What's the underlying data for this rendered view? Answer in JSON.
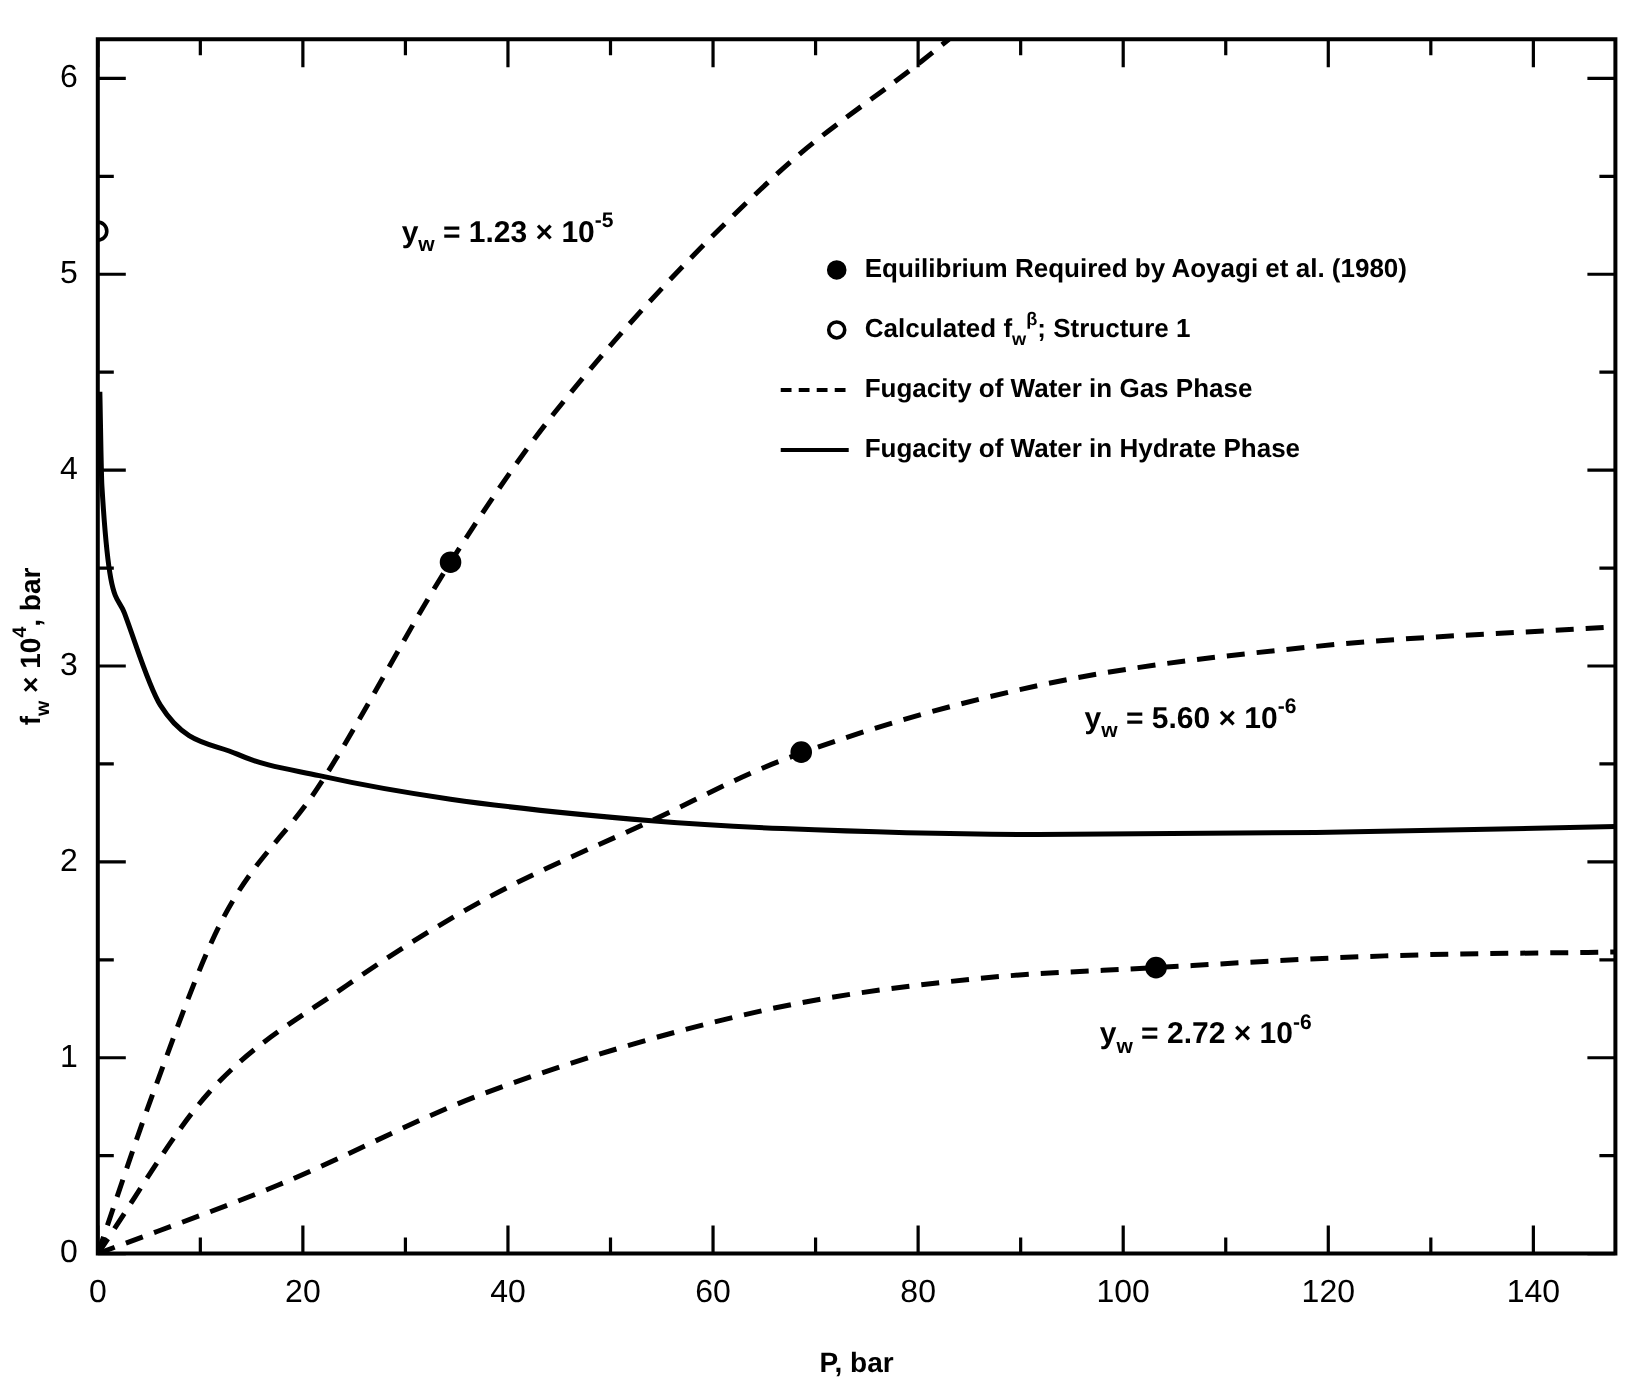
{
  "chart_data": {
    "type": "line",
    "xlabel": "P, bar",
    "ylabel": "f$_{w}$ × 10$^{4}$, bar",
    "xlim": [
      0,
      148
    ],
    "ylim": [
      0,
      6.2
    ],
    "xticks": [
      0,
      {
        "value": 10,
        "label": null
      },
      20,
      {
        "value": 30,
        "label": null
      },
      40,
      {
        "value": 50,
        "label": null
      },
      60,
      {
        "value": 70,
        "label": null
      },
      80,
      {
        "value": 90,
        "label": null
      },
      100,
      {
        "value": 110,
        "label": null
      },
      120,
      {
        "value": 130,
        "label": null
      },
      140
    ],
    "yticks": [
      0,
      {
        "value": 0.5,
        "label": null
      },
      1,
      {
        "value": 1.5,
        "label": null
      },
      2,
      {
        "value": 2.5,
        "label": null
      },
      3,
      {
        "value": 3.5,
        "label": null
      },
      4,
      {
        "value": 4.5,
        "label": null
      },
      5,
      {
        "value": 5.5,
        "label": null
      },
      6
    ],
    "grid": false,
    "legend": "top right",
    "series": [
      {
        "name": "Equilibrium Required by Aoyagi et al. (1980)",
        "type": "scatter",
        "marker": "circle",
        "color": "#000000",
        "x": [
          34.4,
          68.6,
          103.2
        ],
        "values": [
          3.53,
          2.56,
          1.46
        ]
      },
      {
        "name": "Calculated f$_{w}$$^{β}$; Structure 1",
        "type": "scatter",
        "marker": "circle",
        "color": "#ffffff",
        "x": [
          0
        ],
        "values": [
          5.22
        ]
      },
      {
        "name": "Fugacity of Water in Gas Phase",
        "line_style": "dashed",
        "marker": "none",
        "color": "#000000",
        "x": [
          0,
          5.4,
          12.1,
          21.6,
          34.4,
          44.5,
          66.2,
          80.4,
          83
        ],
        "values": [
          0,
          0.82,
          1.7,
          2.39,
          3.53,
          4.29,
          5.51,
          6.09,
          6.2
        ]
      },
      {
        "name": "Fugacity of Water in Hydrate Phase",
        "line_style": "solid",
        "marker": "none",
        "color": "#000000",
        "x": [
          0.2,
          0.4,
          2.6,
          6.1,
          13.6,
          21.6,
          34.4,
          54,
          66.8,
          91.7,
          118.8,
          148
        ],
        "values": [
          4.4,
          3.92,
          3.27,
          2.8,
          2.55,
          2.44,
          2.32,
          2.21,
          2.17,
          2.14,
          2.15,
          2.18
        ]
      },
      {
        "line_style": "dashed",
        "marker": "none",
        "color": "#000000",
        "x": [
          0,
          10.8,
          24.3,
          37.8,
          54,
          66.8,
          91.7,
          118.8,
          147.8
        ],
        "values": [
          0,
          0.82,
          1.37,
          1.81,
          2.21,
          2.52,
          2.9,
          3.1,
          3.2
        ]
      },
      {
        "line_style": "dashed",
        "marker": "none",
        "color": "#000000",
        "x": [
          0,
          17.6,
          37.8,
          64.8,
          85,
          103.2,
          125.5,
          148
        ],
        "values": [
          0,
          0.35,
          0.82,
          1.24,
          1.4,
          1.46,
          1.52,
          1.54
        ]
      }
    ],
    "annotations": [
      "y$_{w}$ = 1.23 × 10$^{-5}$",
      "y$_{w}$ = 5.60 × 10$^{-6}$",
      "y$_{w}$ = 2.72 × 10$^{-6}$"
    ]
  }
}
